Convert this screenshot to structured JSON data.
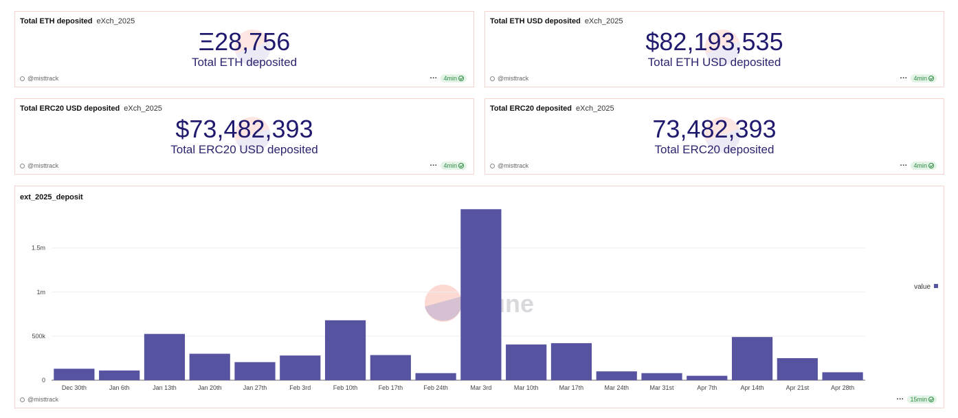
{
  "counters": [
    {
      "title": "Total ETH deposited",
      "subtitle": "eXch_2025",
      "value": "Ξ28,756",
      "label": "Total ETH deposited",
      "author": "@misttrack",
      "refresh": "4min"
    },
    {
      "title": "Total ETH USD deposited",
      "subtitle": "eXch_2025",
      "value": "$82,193,535",
      "label": "Total ETH USD deposited",
      "author": "@misttrack",
      "refresh": "4min"
    },
    {
      "title": "Total ERC20 USD deposited",
      "subtitle": "eXch_2025",
      "value": "$73,482,393",
      "label": "Total ERC20 USD deposited",
      "author": "@misttrack",
      "refresh": "4min"
    },
    {
      "title": "Total ERC20 deposited",
      "subtitle": "eXch_2025",
      "value": "73,482,393",
      "label": "Total ERC20 deposited",
      "author": "@misttrack",
      "refresh": "4min"
    }
  ],
  "chart_panel": {
    "title": "ext_2025_deposit",
    "author": "@misttrack",
    "refresh": "15min",
    "watermark": "Dune"
  },
  "chart_data": {
    "type": "bar",
    "title": "ext_2025_deposit",
    "categories": [
      "Dec 30th",
      "Jan 6th",
      "Jan 13th",
      "Jan 20th",
      "Jan 27th",
      "Feb 3rd",
      "Feb 10th",
      "Feb 17th",
      "Feb 24th",
      "Mar 3rd",
      "Mar 10th",
      "Mar 17th",
      "Mar 24th",
      "Mar 31st",
      "Apr 7th",
      "Apr 14th",
      "Apr 21st",
      "Apr 28th"
    ],
    "series": [
      {
        "name": "value",
        "color": "#5653a0",
        "values": [
          130000,
          110000,
          525000,
          300000,
          205000,
          280000,
          680000,
          285000,
          80000,
          1940000,
          405000,
          420000,
          100000,
          80000,
          50000,
          490000,
          250000,
          90000
        ]
      }
    ],
    "yticks": [
      {
        "value": 0,
        "label": "0"
      },
      {
        "value": 500000,
        "label": "500k"
      },
      {
        "value": 1000000,
        "label": "1m"
      },
      {
        "value": 1500000,
        "label": "1.5m"
      }
    ],
    "ylim": [
      0,
      1950000
    ],
    "legend_position": "right",
    "grid": true
  }
}
